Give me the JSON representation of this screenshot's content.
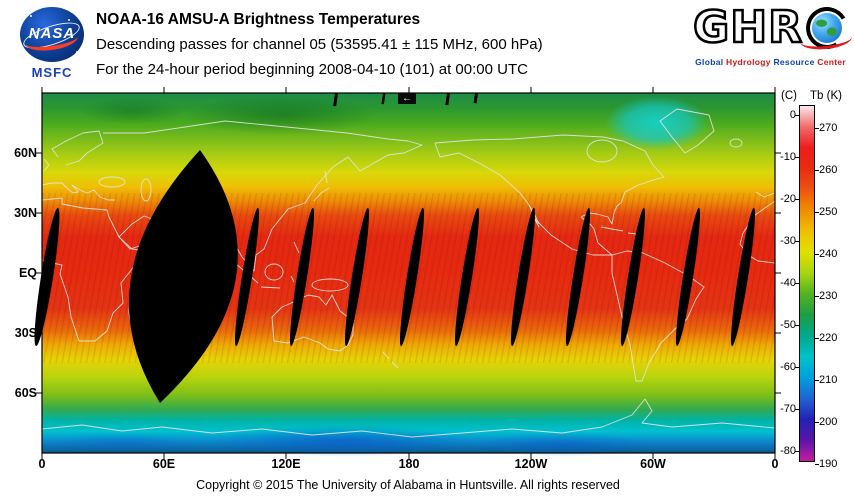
{
  "header": {
    "title": "NOAA-16 AMSU-A Brightness Temperatures",
    "line2": "Descending passes for channel 05 (53595.41 ± 115 MHz, 600 hPa)",
    "line3": "For the 24-hour period beginning 2008-04-10 (101) at 00:00 UTC",
    "nasa_logo_text": "NASA",
    "msfc_label": "MSFC",
    "ghrc_letters": "GHR",
    "ghrc_subtitle_words": [
      "Global",
      "Hydrology",
      "Resource",
      "Center"
    ],
    "ghrc_subtitle_colors": [
      "#1040c0",
      "#d01818",
      "#1040c0",
      "#d01818"
    ]
  },
  "map": {
    "arrow_marker": "←",
    "lat_labels": [
      "60N",
      "30N",
      "EQ",
      "30S",
      "60S"
    ],
    "lon_labels": [
      "0",
      "60E",
      "120E",
      "180",
      "120W",
      "60W",
      "0"
    ]
  },
  "colorbar": {
    "celsius_header": "(C)",
    "kelvin_header": "Tb (K)",
    "celsius_ticks": [
      "0",
      "-10",
      "-20",
      "-30",
      "-40",
      "-50",
      "-60",
      "-70",
      "-80"
    ],
    "kelvin_ticks": [
      "270",
      "260",
      "250",
      "240",
      "230",
      "220",
      "210",
      "200",
      "190"
    ],
    "colors_top_to_bottom": [
      "#ffe8ee",
      "#f06a6a",
      "#ee1c1c",
      "#e82c10",
      "#ee5410",
      "#f08c00",
      "#eec000",
      "#e0e000",
      "#a6d414",
      "#54b41e",
      "#1c9e46",
      "#00a88c",
      "#00c2c8",
      "#00a0dc",
      "#1e64d2",
      "#2222b4",
      "#5a14aa",
      "#c41ea0"
    ]
  },
  "footer": {
    "copyright": "Copyright © 2015 The University of Alabama in Huntsville. All rights reserved"
  },
  "chart_data": {
    "type": "heatmap",
    "title": "NOAA-16 AMSU-A Brightness Temperatures",
    "subtitle": "Descending passes for channel 05 (53595.41 ± 115 MHz, 600 hPa)",
    "period": "For the 24-hour period beginning 2008-04-10 (101) at 00:00 UTC",
    "variable": "AMSU-A channel 05 brightness temperature Tb",
    "projection": "equirectangular world map, longitude 0 eastward through 180 back to 0, latitude 90N to 90S",
    "x_tick_labels": [
      "0",
      "60E",
      "120E",
      "180",
      "120W",
      "60W",
      "0"
    ],
    "y_tick_labels": [
      "60N",
      "30N",
      "EQ",
      "30S",
      "60S"
    ],
    "colorbar": {
      "label_left": "(C)",
      "label_right": "Tb (K)",
      "celsius_ticks": [
        0,
        -10,
        -20,
        -30,
        -40,
        -50,
        -60,
        -70,
        -80
      ],
      "kelvin_ticks": [
        270,
        260,
        250,
        240,
        230,
        220,
        210,
        200,
        190
      ],
      "kelvin_range_top_to_bottom": [
        275,
        190
      ],
      "orientation": "vertical; warm pink/red at top, cold blue/magenta at bottom"
    },
    "approx_zonal_mean_Tb_K": {
      "latitude": [
        90,
        75,
        60,
        45,
        30,
        15,
        0,
        -15,
        -30,
        -45,
        -60,
        -75,
        -90
      ],
      "tb_k": [
        235,
        239,
        244,
        250,
        257,
        262,
        263,
        261,
        255,
        247,
        240,
        224,
        210
      ]
    },
    "features": [
      "Bright red band (Tb ≈ 258-265 K) across the tropics between about 30N and 30S",
      "Yellow and yellow-green mid-latitude bands near 40-60 degrees in both hemispheres",
      "Green high-latitude band in the north; cyan-blue cold region over Antarctica (Tb ≈ 200-225 K)",
      "Cyan cold patch over Greenland",
      "One large black lens-shaped data gap centered near 60E spanning roughly 60N to 65S",
      "About a dozen narrow tilted black inter-swath data gaps spaced ~27 degrees of longitude apart between roughly 30N and 40S",
      "White/gray continental coastline overlay"
    ]
  }
}
